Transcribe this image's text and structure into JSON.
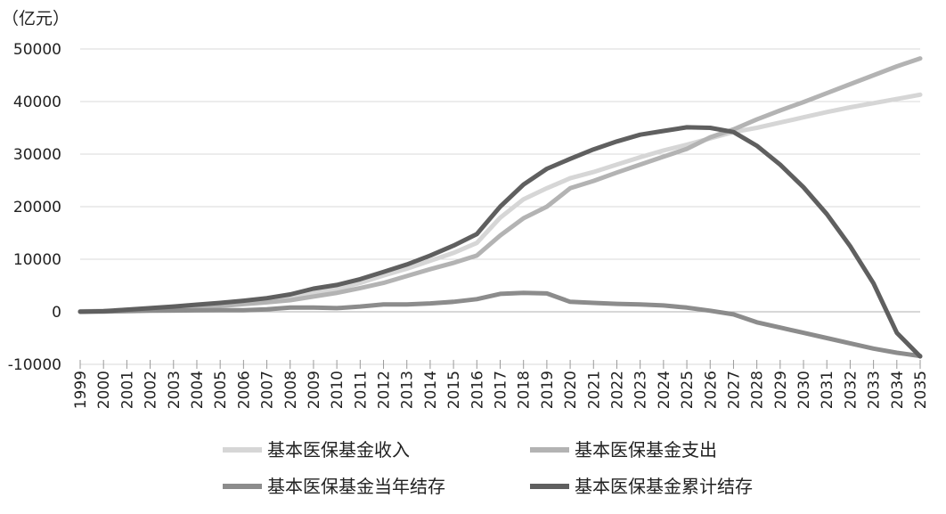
{
  "chart_data": {
    "type": "line",
    "unit_label": "（亿元）",
    "x": [
      1999,
      2000,
      2001,
      2002,
      2003,
      2004,
      2005,
      2006,
      2007,
      2008,
      2009,
      2010,
      2011,
      2012,
      2013,
      2014,
      2015,
      2016,
      2017,
      2018,
      2019,
      2020,
      2021,
      2022,
      2023,
      2024,
      2025,
      2026,
      2027,
      2028,
      2029,
      2030,
      2031,
      2032,
      2033,
      2034,
      2035
    ],
    "x_tick_labels": [
      "1999",
      "2000",
      "2001",
      "2002",
      "2003",
      "2004",
      "2005",
      "2006",
      "2007",
      "2008",
      "2009",
      "2010",
      "2011",
      "2012",
      "2013",
      "2014",
      "2015",
      "2016",
      "2017",
      "2018",
      "2019",
      "2020",
      "2021",
      "2022",
      "2023",
      "2024",
      "2025",
      "2026",
      "2027",
      "2028",
      "2029",
      "2030",
      "2031",
      "2032",
      "2033",
      "2034",
      "2035"
    ],
    "ylim": [
      -10000,
      50000
    ],
    "y_ticks": [
      -10000,
      0,
      10000,
      20000,
      30000,
      40000,
      50000
    ],
    "y_tick_labels": [
      "-10000",
      "0",
      "10000",
      "20000",
      "30000",
      "40000",
      "50000"
    ],
    "grid": "horizontal",
    "legend_position": "bottom",
    "series": [
      {
        "name": "基本医保基金收入",
        "color": "#d6d6d6",
        "values": [
          100,
          170,
          380,
          600,
          840,
          1120,
          1400,
          1750,
          2250,
          3000,
          3700,
          4300,
          5500,
          6900,
          8200,
          9700,
          11200,
          13100,
          17900,
          21400,
          23500,
          25400,
          26600,
          28000,
          29400,
          30700,
          31800,
          33000,
          34200,
          35000,
          36000,
          37000,
          38000,
          38900,
          39700,
          40500,
          41300
        ]
      },
      {
        "name": "基本医保基金支出",
        "color": "#b3b3b3",
        "values": [
          50,
          120,
          250,
          400,
          600,
          850,
          1100,
          1450,
          1800,
          2200,
          2900,
          3600,
          4500,
          5500,
          6800,
          8100,
          9300,
          10700,
          14500,
          17800,
          20000,
          23500,
          24900,
          26500,
          28000,
          29500,
          31000,
          33200,
          34700,
          36600,
          38300,
          39900,
          41600,
          43300,
          45000,
          46700,
          48200
        ]
      },
      {
        "name": "基本医保基金当年结存",
        "color": "#8c8c8c",
        "values": [
          50,
          50,
          130,
          200,
          240,
          270,
          300,
          300,
          450,
          800,
          800,
          700,
          1000,
          1400,
          1400,
          1600,
          1900,
          2400,
          3400,
          3600,
          3500,
          1900,
          1700,
          1500,
          1400,
          1200,
          800,
          200,
          -500,
          -2000,
          -3000,
          -4000,
          -5000,
          -6000,
          -7000,
          -7800,
          -8400
        ]
      },
      {
        "name": "基本医保基金累计结存",
        "color": "#5f5f5f",
        "values": [
          0,
          100,
          400,
          700,
          1000,
          1350,
          1700,
          2100,
          2600,
          3300,
          4400,
          5100,
          6200,
          7600,
          9000,
          10700,
          12600,
          14800,
          20000,
          24200,
          27200,
          29100,
          30900,
          32400,
          33700,
          34400,
          35100,
          35000,
          34200,
          31600,
          28000,
          23700,
          18600,
          12500,
          5400,
          -4000,
          -8500
        ]
      }
    ]
  }
}
